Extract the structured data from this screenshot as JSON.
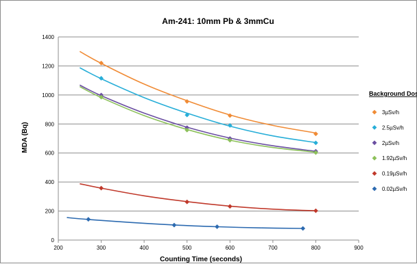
{
  "chart_data": {
    "type": "scatter",
    "title": "Am-241: 10mm Pb & 3mmCu",
    "xlabel": "Counting Time (seconds)",
    "ylabel": "MDA (Bq)",
    "xlim": [
      200,
      900
    ],
    "ylim": [
      0,
      1400
    ],
    "x_ticks": [
      "200",
      "300",
      "400",
      "500",
      "600",
      "700",
      "800",
      "900"
    ],
    "y_ticks": [
      "0",
      "200",
      "400",
      "600",
      "800",
      "1000",
      "1200",
      "1400"
    ],
    "grid": "horizontal",
    "legend_title": "Background Dose",
    "legend_position": "right",
    "series": [
      {
        "name": "3µSv/h",
        "color": "#f08b35",
        "points": [
          [
            300,
            1220
          ],
          [
            500,
            955
          ],
          [
            600,
            858
          ],
          [
            800,
            732
          ]
        ],
        "trend": [
          [
            250,
            1300
          ],
          [
            300,
            1218
          ],
          [
            400,
            1075
          ],
          [
            500,
            960
          ],
          [
            600,
            862
          ],
          [
            700,
            790
          ],
          [
            800,
            738
          ]
        ]
      },
      {
        "name": "2.5µSv/h",
        "color": "#27aed8",
        "points": [
          [
            300,
            1115
          ],
          [
            500,
            862
          ],
          [
            600,
            790
          ],
          [
            800,
            670
          ]
        ],
        "trend": [
          [
            250,
            1188
          ],
          [
            300,
            1112
          ],
          [
            400,
            982
          ],
          [
            500,
            875
          ],
          [
            600,
            785
          ],
          [
            700,
            718
          ],
          [
            800,
            672
          ]
        ]
      },
      {
        "name": "2µSv/h",
        "color": "#6a4ea1",
        "points": [
          [
            300,
            1000
          ],
          [
            500,
            775
          ],
          [
            600,
            700
          ],
          [
            800,
            612
          ]
        ],
        "trend": [
          [
            250,
            1068
          ],
          [
            300,
            995
          ],
          [
            400,
            875
          ],
          [
            500,
            778
          ],
          [
            600,
            703
          ],
          [
            700,
            650
          ],
          [
            800,
            612
          ]
        ]
      },
      {
        "name": "1.92µSv/h",
        "color": "#8cc05a",
        "points": [
          [
            300,
            985
          ],
          [
            500,
            758
          ],
          [
            600,
            688
          ],
          [
            800,
            603
          ]
        ],
        "trend": [
          [
            250,
            1058
          ],
          [
            300,
            982
          ],
          [
            400,
            858
          ],
          [
            500,
            762
          ],
          [
            600,
            688
          ],
          [
            700,
            638
          ],
          [
            800,
            606
          ]
        ]
      },
      {
        "name": "0.19µSv/h",
        "color": "#c0392b",
        "points": [
          [
            300,
            358
          ],
          [
            500,
            263
          ],
          [
            600,
            232
          ],
          [
            800,
            202
          ]
        ],
        "trend": [
          [
            250,
            388
          ],
          [
            300,
            358
          ],
          [
            400,
            305
          ],
          [
            500,
            265
          ],
          [
            600,
            234
          ],
          [
            700,
            213
          ],
          [
            800,
            202
          ]
        ]
      },
      {
        "name": "0.02µSv/h",
        "color": "#2c6ab0",
        "points": [
          [
            270,
            143
          ],
          [
            470,
            103
          ],
          [
            570,
            92
          ],
          [
            770,
            80
          ]
        ],
        "trend": [
          [
            220,
            155
          ],
          [
            270,
            142
          ],
          [
            370,
            121
          ],
          [
            470,
            104
          ],
          [
            570,
            92
          ],
          [
            670,
            84
          ],
          [
            770,
            80
          ]
        ]
      }
    ]
  }
}
